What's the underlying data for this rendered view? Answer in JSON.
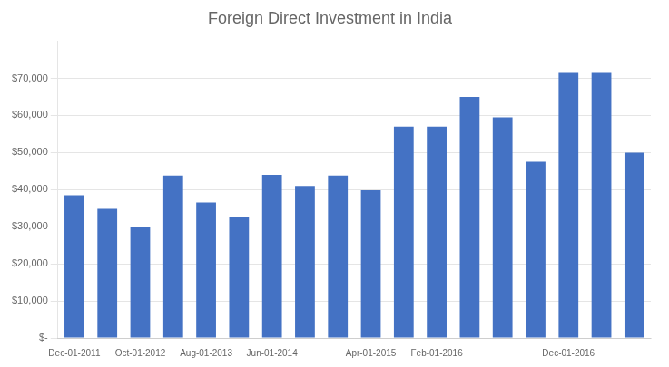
{
  "chart_data": {
    "type": "bar",
    "title": "Foreign Direct Investment in India",
    "categories": [
      "Dec-01-2011",
      null,
      "Oct-01-2012",
      null,
      "Aug-01-2013",
      null,
      "Jun-01-2014",
      null,
      null,
      "Apr-01-2015",
      null,
      "Feb-01-2016",
      null,
      null,
      null,
      "Dec-01-2016",
      null,
      null
    ],
    "values": [
      38500,
      34800,
      29800,
      43800,
      36500,
      32500,
      44000,
      41000,
      43800,
      39800,
      57000,
      57000,
      65000,
      59500,
      47500,
      71500,
      71500,
      50000
    ],
    "color": "#4472C4",
    "ylim": [
      0,
      80000
    ],
    "yticks": [
      {
        "value": 0,
        "label": "$-"
      },
      {
        "value": 10000,
        "label": "$10,000"
      },
      {
        "value": 20000,
        "label": "$20,000"
      },
      {
        "value": 30000,
        "label": "$30,000"
      },
      {
        "value": 40000,
        "label": "$40,000"
      },
      {
        "value": 50000,
        "label": "$50,000"
      },
      {
        "value": 60000,
        "label": "$60,000"
      },
      {
        "value": 70000,
        "label": "$70,000"
      }
    ],
    "grid": true
  }
}
